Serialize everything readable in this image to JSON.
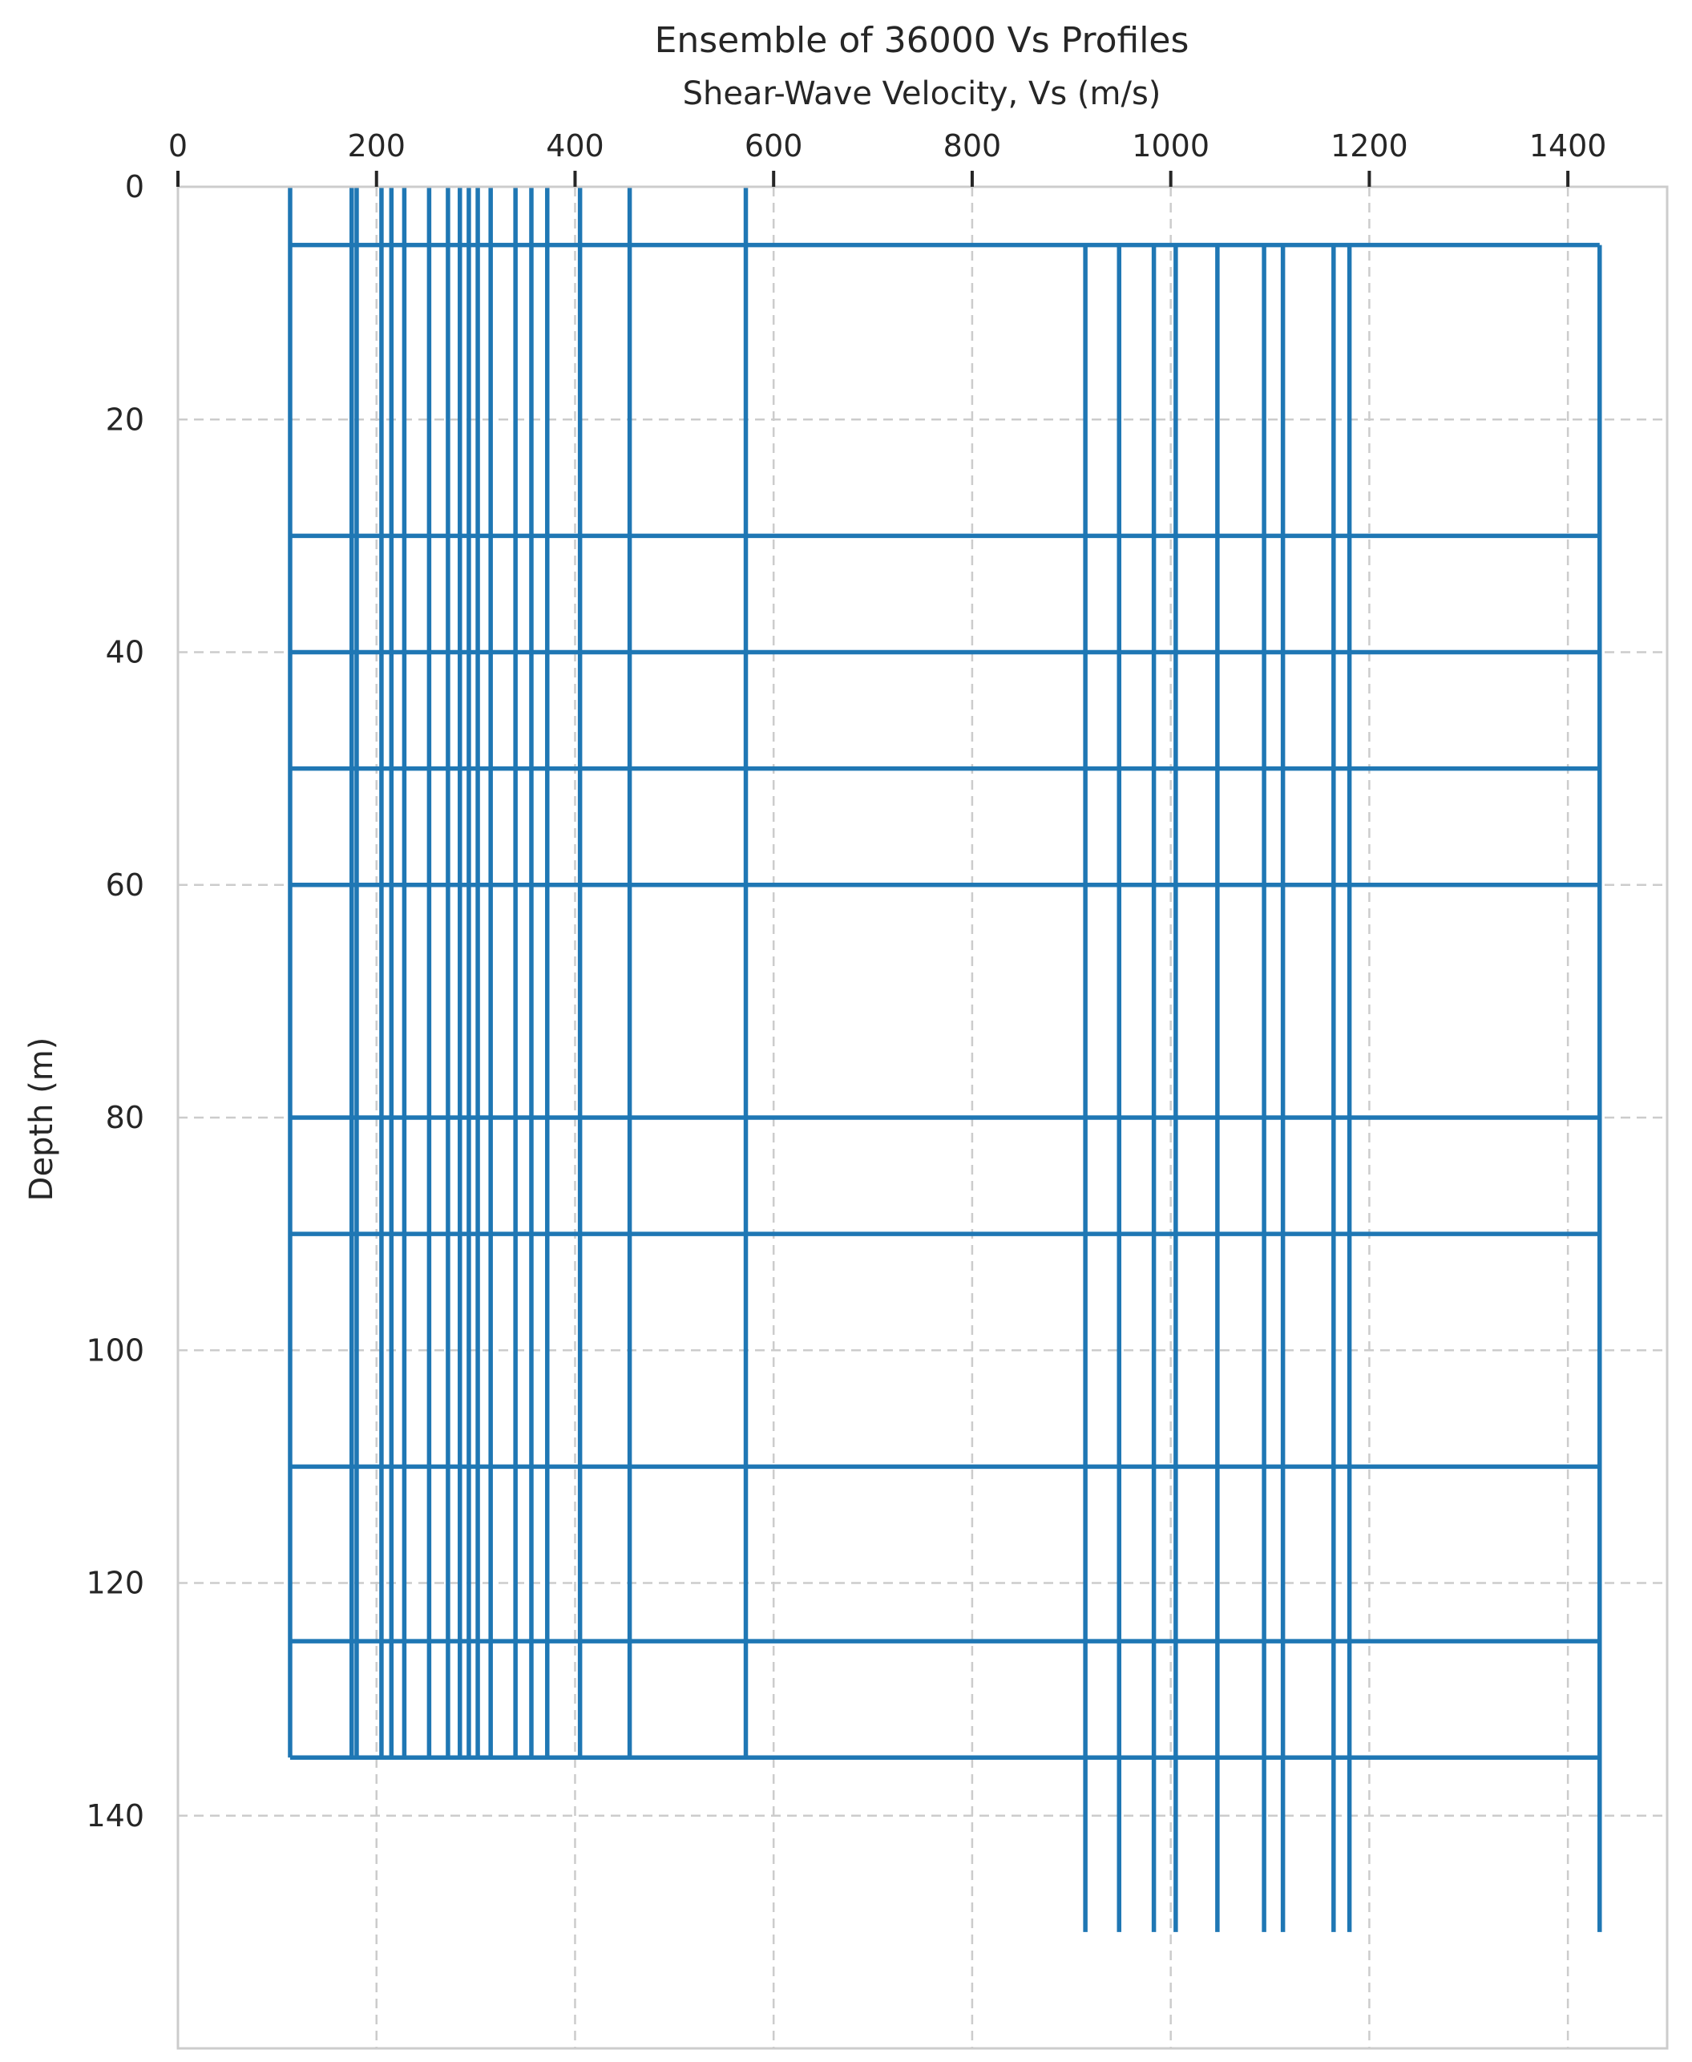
{
  "chart_data": {
    "type": "line",
    "title": "Ensemble of 36000 Vs Profiles",
    "xlabel": "Shear-Wave Velocity, Vs (m/s)",
    "ylabel": "Depth (m)",
    "xlim": [
      0,
      1500
    ],
    "ylim": [
      160,
      0
    ],
    "x_ticks": [
      "0",
      "200",
      "400",
      "600",
      "800",
      "1000",
      "1200",
      "1400"
    ],
    "x_tick_values": [
      0,
      200,
      400,
      600,
      800,
      1000,
      1200,
      1400
    ],
    "y_ticks": [
      "0",
      "20",
      "40",
      "60",
      "80",
      "100",
      "120",
      "140"
    ],
    "y_tick_values": [
      0,
      20,
      40,
      60,
      80,
      100,
      120,
      140
    ],
    "x_axis_position": "top",
    "y_axis_inverted": true,
    "grid": true,
    "line_color": "#1f77b4",
    "grid_color": "#cccccc",
    "upper_layer": {
      "depth_range": [
        0,
        135
      ],
      "velocities": [
        113,
        175,
        180,
        205,
        215,
        228,
        253,
        272,
        284,
        293,
        302,
        315,
        340,
        356,
        372,
        405,
        455,
        572
      ]
    },
    "lower_layer": {
      "depth_range": [
        5,
        150
      ],
      "velocities": [
        914,
        948,
        983,
        1005,
        1047,
        1094,
        1113,
        1164,
        1180,
        1432
      ]
    },
    "boundary_depths": [
      5,
      30,
      40,
      50,
      60,
      80,
      90,
      110,
      125,
      135
    ]
  }
}
